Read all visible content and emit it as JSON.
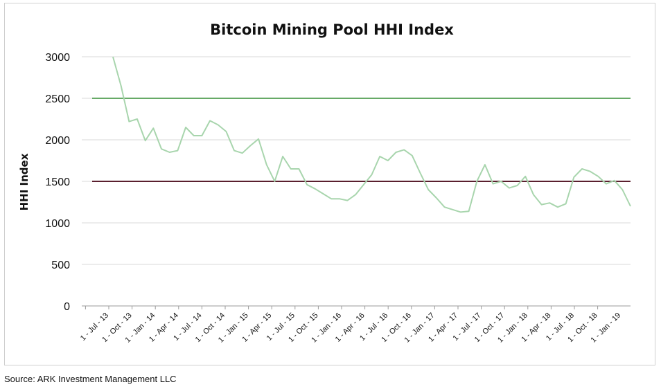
{
  "chart_data": {
    "type": "line",
    "title": "Bitcoin Mining Pool HHI Index",
    "ylabel": "HHI Index",
    "xlabel": "",
    "ylim": [
      0,
      3000
    ],
    "yticks": [
      0,
      500,
      1000,
      1500,
      2000,
      2500,
      3000
    ],
    "grid": true,
    "legend": "none",
    "x_tick_labels": [
      "1 - Jul - 13",
      "1 - Oct - 13",
      "1 - Jan - 14",
      "1 - Apr - 14",
      "1 - Jul - 14",
      "1 - Oct - 14",
      "1 - Jan - 15",
      "1 - Apr - 15",
      "1 - Jul - 15",
      "1 - Oct - 15",
      "1 - Jan - 16",
      "1 - Apr - 16",
      "1 - Jul - 16",
      "1 - Oct - 16",
      "1 - Jan - 17",
      "1 - Apr - 17",
      "1 - Jul - 17",
      "1 - Oct - 17",
      "1 - Jan - 18",
      "1 - Apr - 18",
      "1 - Jul - 18",
      "1 - Oct - 18",
      "1 - Jan - 19"
    ],
    "series": [
      {
        "color": "#a8d5ad",
        "values": [
          3000,
          2650,
          2220,
          2250,
          1990,
          2140,
          1890,
          1850,
          1870,
          2150,
          2050,
          2050,
          2230,
          2180,
          2100,
          1870,
          1840,
          1930,
          2010,
          1700,
          1500,
          1800,
          1650,
          1650,
          1460,
          1410,
          1350,
          1290,
          1290,
          1270,
          1340,
          1460,
          1580,
          1800,
          1750,
          1850,
          1880,
          1810,
          1600,
          1400,
          1300,
          1190,
          1160,
          1130,
          1140,
          1500,
          1700,
          1470,
          1500,
          1420,
          1450,
          1560,
          1340,
          1220,
          1240,
          1190,
          1230,
          1550,
          1650,
          1620,
          1560,
          1470,
          1510,
          1400,
          1200
        ]
      }
    ],
    "reference_lines": [
      {
        "value": 2500,
        "color": "#66aa66"
      },
      {
        "value": 1500,
        "color": "#5a1f2e"
      }
    ]
  },
  "source": "Source: ARK Investment Management LLC"
}
